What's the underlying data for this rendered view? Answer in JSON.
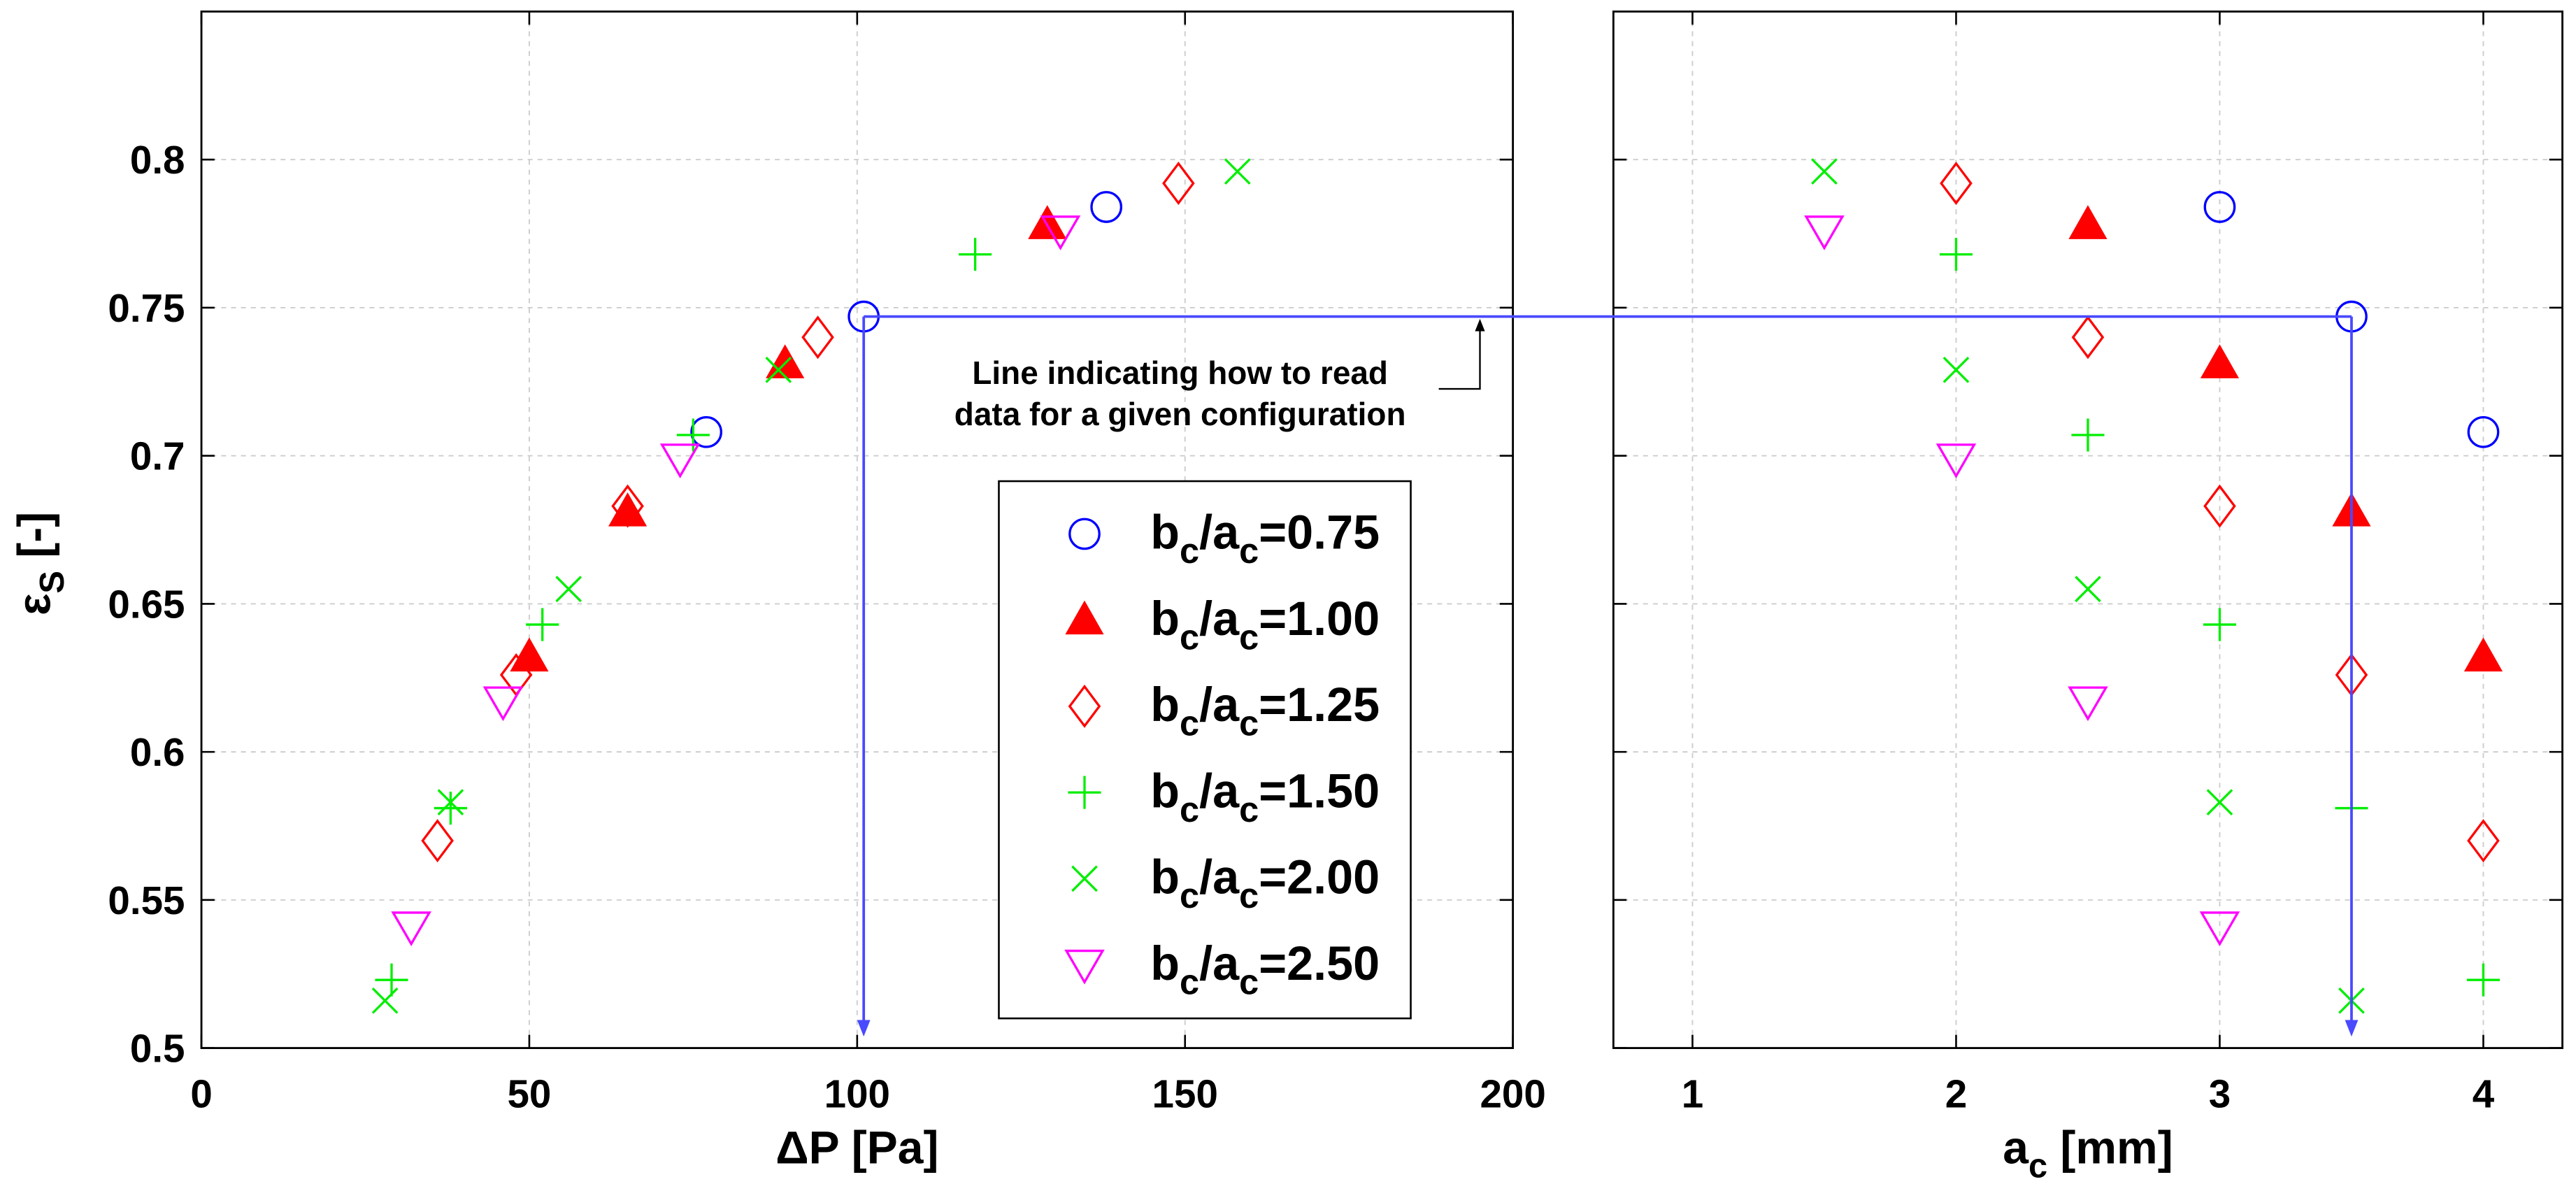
{
  "chart_data": [
    {
      "type": "scatter",
      "xlabel": "ΔP [Pa]",
      "ylabel": "ε_S [-]",
      "xlim": [
        0,
        200
      ],
      "ylim": [
        0.5,
        0.85
      ],
      "xticks": [
        0,
        50,
        100,
        150,
        200
      ],
      "xtick_labels": [
        "0",
        "50",
        "100",
        "150",
        "200"
      ],
      "yticks": [
        0.5,
        0.55,
        0.6,
        0.65,
        0.7,
        0.75,
        0.8
      ],
      "ytick_labels": [
        "0.5",
        "0.55",
        "0.6",
        "0.65",
        "0.7",
        "0.75",
        "0.8"
      ],
      "grid": true,
      "legend": "inside, lower right",
      "series": [
        {
          "name": "b_c/a_c=0.75",
          "marker": "circle",
          "filled": false,
          "color": "#0000ff",
          "x": [
            138,
            101,
            77
          ],
          "y": [
            0.784,
            0.747,
            0.708
          ]
        },
        {
          "name": "b_c/a_c=1.00",
          "marker": "triangle-up",
          "filled": true,
          "color": "#ff0000",
          "x": [
            129,
            89,
            65,
            50
          ],
          "y": [
            0.778,
            0.731,
            0.681,
            0.632
          ]
        },
        {
          "name": "b_c/a_c=1.25",
          "marker": "diamond",
          "filled": false,
          "color": "#ff0000",
          "x": [
            149,
            94,
            65,
            48,
            36
          ],
          "y": [
            0.792,
            0.74,
            0.683,
            0.626,
            0.57
          ]
        },
        {
          "name": "b_c/a_c=1.50",
          "marker": "plus",
          "filled": false,
          "color": "#00ee00",
          "x": [
            118,
            75,
            52,
            38,
            29
          ],
          "y": [
            0.768,
            0.707,
            0.643,
            0.581,
            0.523
          ]
        },
        {
          "name": "b_c/a_c=2.00",
          "marker": "x",
          "filled": false,
          "color": "#00ee00",
          "x": [
            158,
            88,
            56,
            38,
            28
          ],
          "y": [
            0.796,
            0.729,
            0.655,
            0.583,
            0.516
          ]
        },
        {
          "name": "b_c/a_c=2.50",
          "marker": "triangle-down",
          "filled": false,
          "color": "#ff00ff",
          "x": [
            131,
            73,
            46,
            32
          ],
          "y": [
            0.776,
            0.699,
            0.617,
            0.541
          ]
        }
      ]
    },
    {
      "type": "scatter",
      "xlabel": "a_c [mm]",
      "xlim": [
        0.7,
        4.3
      ],
      "ylim": [
        0.5,
        0.85
      ],
      "xticks": [
        1,
        2,
        3,
        4
      ],
      "xtick_labels": [
        "1",
        "2",
        "3",
        "4"
      ],
      "yticks": [
        0.5,
        0.55,
        0.6,
        0.65,
        0.7,
        0.75,
        0.8
      ],
      "grid": true,
      "series": [
        {
          "legend_entry": 0,
          "marker": "circle",
          "filled": false,
          "color": "#0000ff",
          "x": [
            3,
            3.5,
            4
          ],
          "y": [
            0.784,
            0.747,
            0.708
          ]
        },
        {
          "legend_entry": 1,
          "marker": "triangle-up",
          "filled": true,
          "color": "#ff0000",
          "x": [
            2.5,
            3,
            3.5,
            4
          ],
          "y": [
            0.778,
            0.731,
            0.681,
            0.632
          ]
        },
        {
          "legend_entry": 2,
          "marker": "diamond",
          "filled": false,
          "color": "#ff0000",
          "x": [
            2,
            2.5,
            3,
            3.5,
            4
          ],
          "y": [
            0.792,
            0.74,
            0.683,
            0.626,
            0.57
          ]
        },
        {
          "legend_entry": 3,
          "marker": "plus",
          "filled": false,
          "color": "#00ee00",
          "x": [
            2,
            2.5,
            3,
            3.5,
            4
          ],
          "y": [
            0.768,
            0.707,
            0.643,
            0.581,
            0.523
          ]
        },
        {
          "legend_entry": 4,
          "marker": "x",
          "filled": false,
          "color": "#00ee00",
          "x": [
            1.5,
            2,
            2.5,
            3,
            3.5
          ],
          "y": [
            0.796,
            0.729,
            0.655,
            0.583,
            0.516
          ]
        },
        {
          "legend_entry": 5,
          "marker": "triangle-down",
          "filled": false,
          "color": "#ff00ff",
          "x": [
            1.5,
            2,
            2.5,
            3
          ],
          "y": [
            0.776,
            0.699,
            0.617,
            0.541
          ]
        }
      ]
    }
  ],
  "reading_guide": {
    "color": "#4a4aff",
    "y": 0.747,
    "left_x": 101,
    "right_x": 3.5
  },
  "annotation": {
    "text_lines": [
      "Line indicating how to read",
      "data for a given configuration"
    ]
  }
}
